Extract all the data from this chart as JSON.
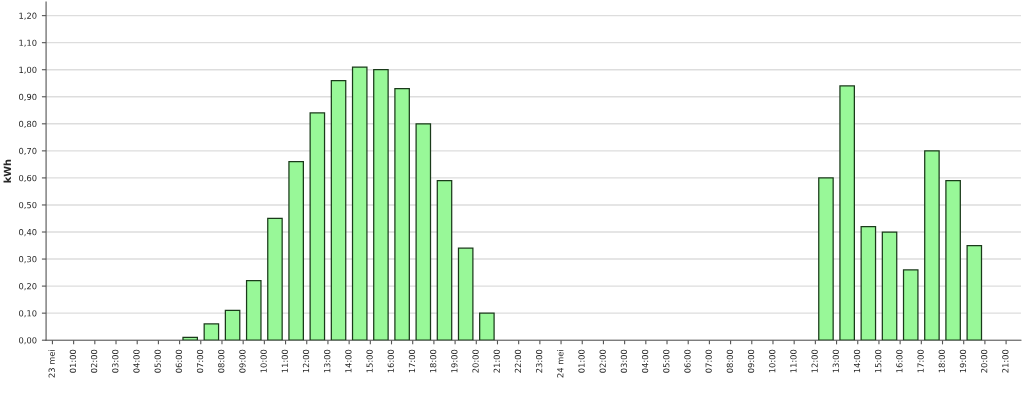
{
  "chart_data": {
    "type": "bar",
    "ylabel": "kWh",
    "categories": [
      "23 mei",
      "01:00",
      "02:00",
      "03:00",
      "04:00",
      "05:00",
      "06:00",
      "07:00",
      "08:00",
      "09:00",
      "10:00",
      "11:00",
      "12:00",
      "13:00",
      "14:00",
      "15:00",
      "16:00",
      "17:00",
      "18:00",
      "19:00",
      "20:00",
      "21:00",
      "22:00",
      "23:00",
      "24 mei",
      "01:00",
      "02:00",
      "03:00",
      "04:00",
      "05:00",
      "06:00",
      "07:00",
      "08:00",
      "09:00",
      "10:00",
      "11:00",
      "12:00",
      "13:00",
      "14:00",
      "15:00",
      "16:00",
      "17:00",
      "18:00",
      "19:00",
      "20:00",
      "21:00"
    ],
    "values": [
      null,
      null,
      null,
      null,
      null,
      null,
      0.01,
      0.06,
      0.11,
      0.22,
      0.45,
      0.66,
      0.84,
      0.96,
      1.01,
      1.0,
      0.93,
      0.8,
      0.59,
      0.34,
      0.1,
      null,
      null,
      null,
      null,
      null,
      null,
      null,
      null,
      null,
      null,
      null,
      null,
      null,
      null,
      null,
      0.6,
      0.94,
      0.42,
      0.4,
      0.26,
      0.7,
      0.59,
      0.35,
      null,
      null
    ],
    "color": "#98f898",
    "ylim": [
      0,
      1.25
    ],
    "yticks": [
      {
        "value": 0,
        "label": "0,00"
      },
      {
        "value": 0.1,
        "label": "0,10"
      },
      {
        "value": 0.2,
        "label": "0,20"
      },
      {
        "value": 0.3,
        "label": "0,30"
      },
      {
        "value": 0.4,
        "label": "0,40"
      },
      {
        "value": 0.5,
        "label": "0,50"
      },
      {
        "value": 0.6,
        "label": "0,60"
      },
      {
        "value": 0.7,
        "label": "0,70"
      },
      {
        "value": 0.8,
        "label": "0,80"
      },
      {
        "value": 0.9,
        "label": "0,90"
      },
      {
        "value": 1.0,
        "label": "1,00"
      },
      {
        "value": 1.1,
        "label": "1,10"
      },
      {
        "value": 1.2,
        "label": "1,20"
      }
    ],
    "grid": "y",
    "legend": false
  }
}
